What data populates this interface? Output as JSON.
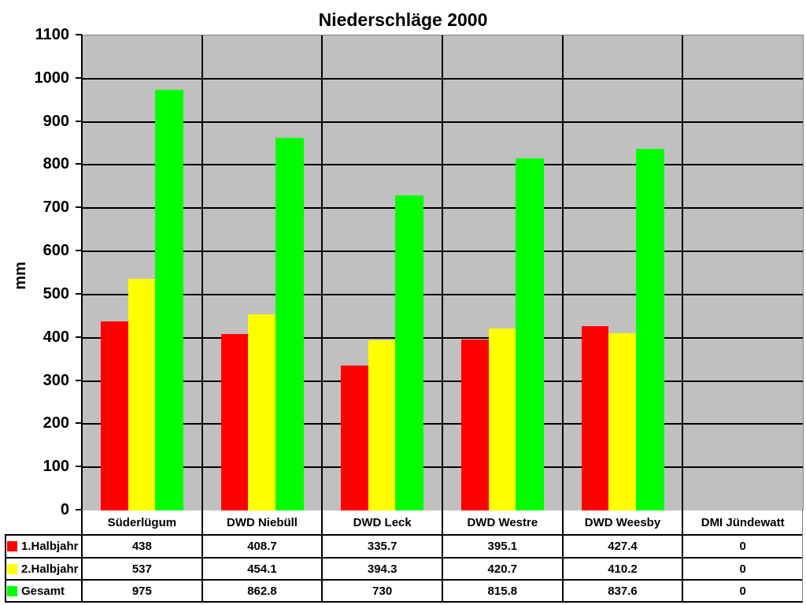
{
  "chart_data": {
    "type": "bar",
    "title": "Niederschläge 2000",
    "xlabel": "",
    "ylabel": "mm",
    "ylim": [
      0,
      1100
    ],
    "yticks": [
      0,
      100,
      200,
      300,
      400,
      500,
      600,
      700,
      800,
      900,
      1000,
      1100
    ],
    "grid": true,
    "legend_position": "data-table-left",
    "categories": [
      "Süderlügum",
      "DWD Niebüll",
      "DWD Leck",
      "DWD Westre",
      "DWD Weesby",
      "DMI Jündewatt"
    ],
    "series": [
      {
        "name": "1.Halbjahr",
        "color": "#ff0000",
        "values": [
          438,
          408.7,
          335.7,
          395.1,
          427.4,
          0
        ]
      },
      {
        "name": "2.Halbjahr",
        "color": "#ffff00",
        "values": [
          537,
          454.1,
          394.3,
          420.7,
          410.2,
          0
        ]
      },
      {
        "name": "Gesamt",
        "color": "#00ff00",
        "values": [
          975,
          862.8,
          730,
          815.8,
          837.6,
          0
        ]
      }
    ]
  },
  "table": {
    "display_values": [
      [
        "438",
        "408.7",
        "335.7",
        "395.1",
        "427.4",
        "0"
      ],
      [
        "537",
        "454.1",
        "394.3",
        "420.7",
        "410.2",
        "0"
      ],
      [
        "975",
        "862.8",
        "730",
        "815.8",
        "837.6",
        "0"
      ]
    ]
  },
  "colors": {
    "plot_background": "#c0c0c0",
    "gridline": "#000000"
  }
}
